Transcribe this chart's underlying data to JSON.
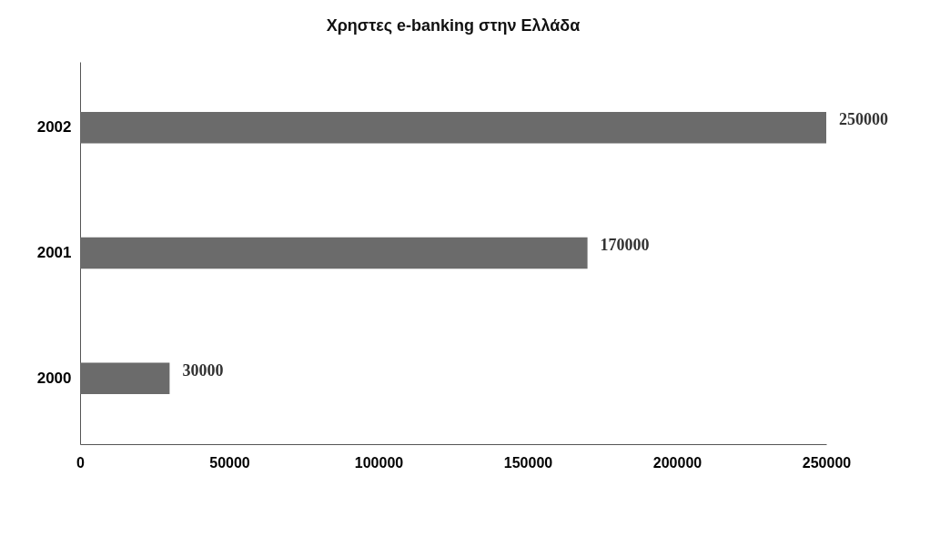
{
  "chart_data": {
    "type": "bar",
    "orientation": "horizontal",
    "title": "Χρηστες e-banking στην Ελλάδα",
    "categories": [
      "2002",
      "2001",
      "2000"
    ],
    "values": [
      250000,
      170000,
      30000
    ],
    "color": "#6b6b6b",
    "xlim": [
      0,
      250000
    ],
    "xticks": [
      0,
      50000,
      100000,
      150000,
      200000,
      250000
    ],
    "grid": false,
    "data_labels": true
  }
}
